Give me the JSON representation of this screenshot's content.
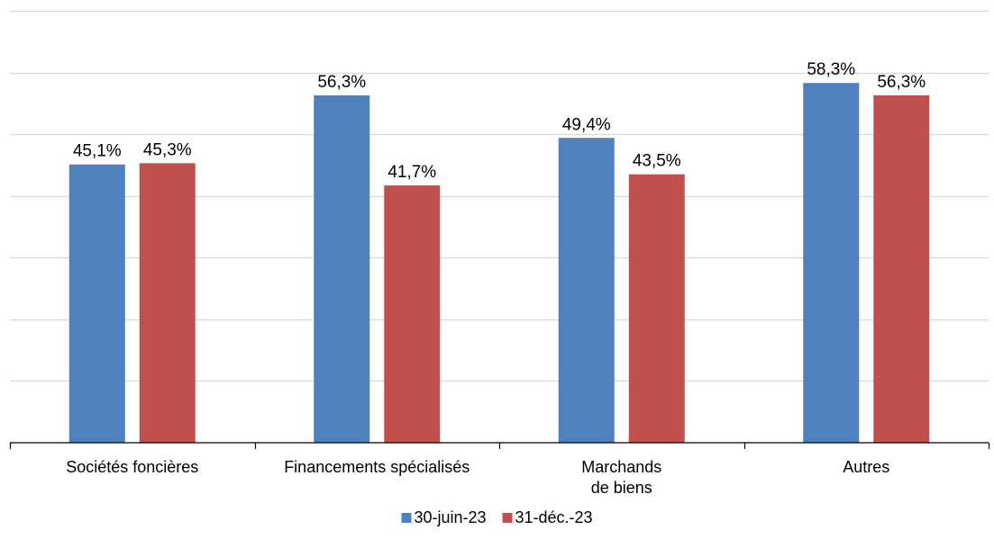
{
  "chart_data": {
    "type": "bar",
    "categories": [
      [
        "Sociétés foncières"
      ],
      [
        "Financements spécialisés"
      ],
      [
        "Marchands",
        "de biens"
      ],
      [
        "Autres"
      ]
    ],
    "series": [
      {
        "name": "30-juin-23",
        "color": "#4F81BD",
        "values": [
          45.1,
          56.3,
          49.4,
          58.3
        ],
        "labels": [
          "45,1%",
          "56,3%",
          "49,4%",
          "58,3%"
        ]
      },
      {
        "name": "31-déc.-23",
        "color": "#C0504D",
        "values": [
          45.3,
          41.7,
          43.5,
          56.3
        ],
        "labels": [
          "45,3%",
          "41,7%",
          "43,5%",
          "56,3%"
        ]
      }
    ],
    "ylim": [
      0,
      70
    ],
    "gridlines": [
      0,
      10,
      20,
      30,
      40,
      50,
      60,
      70
    ],
    "grid": true,
    "y_tick_labels_shown": false,
    "legend_position": "bottom-center"
  }
}
